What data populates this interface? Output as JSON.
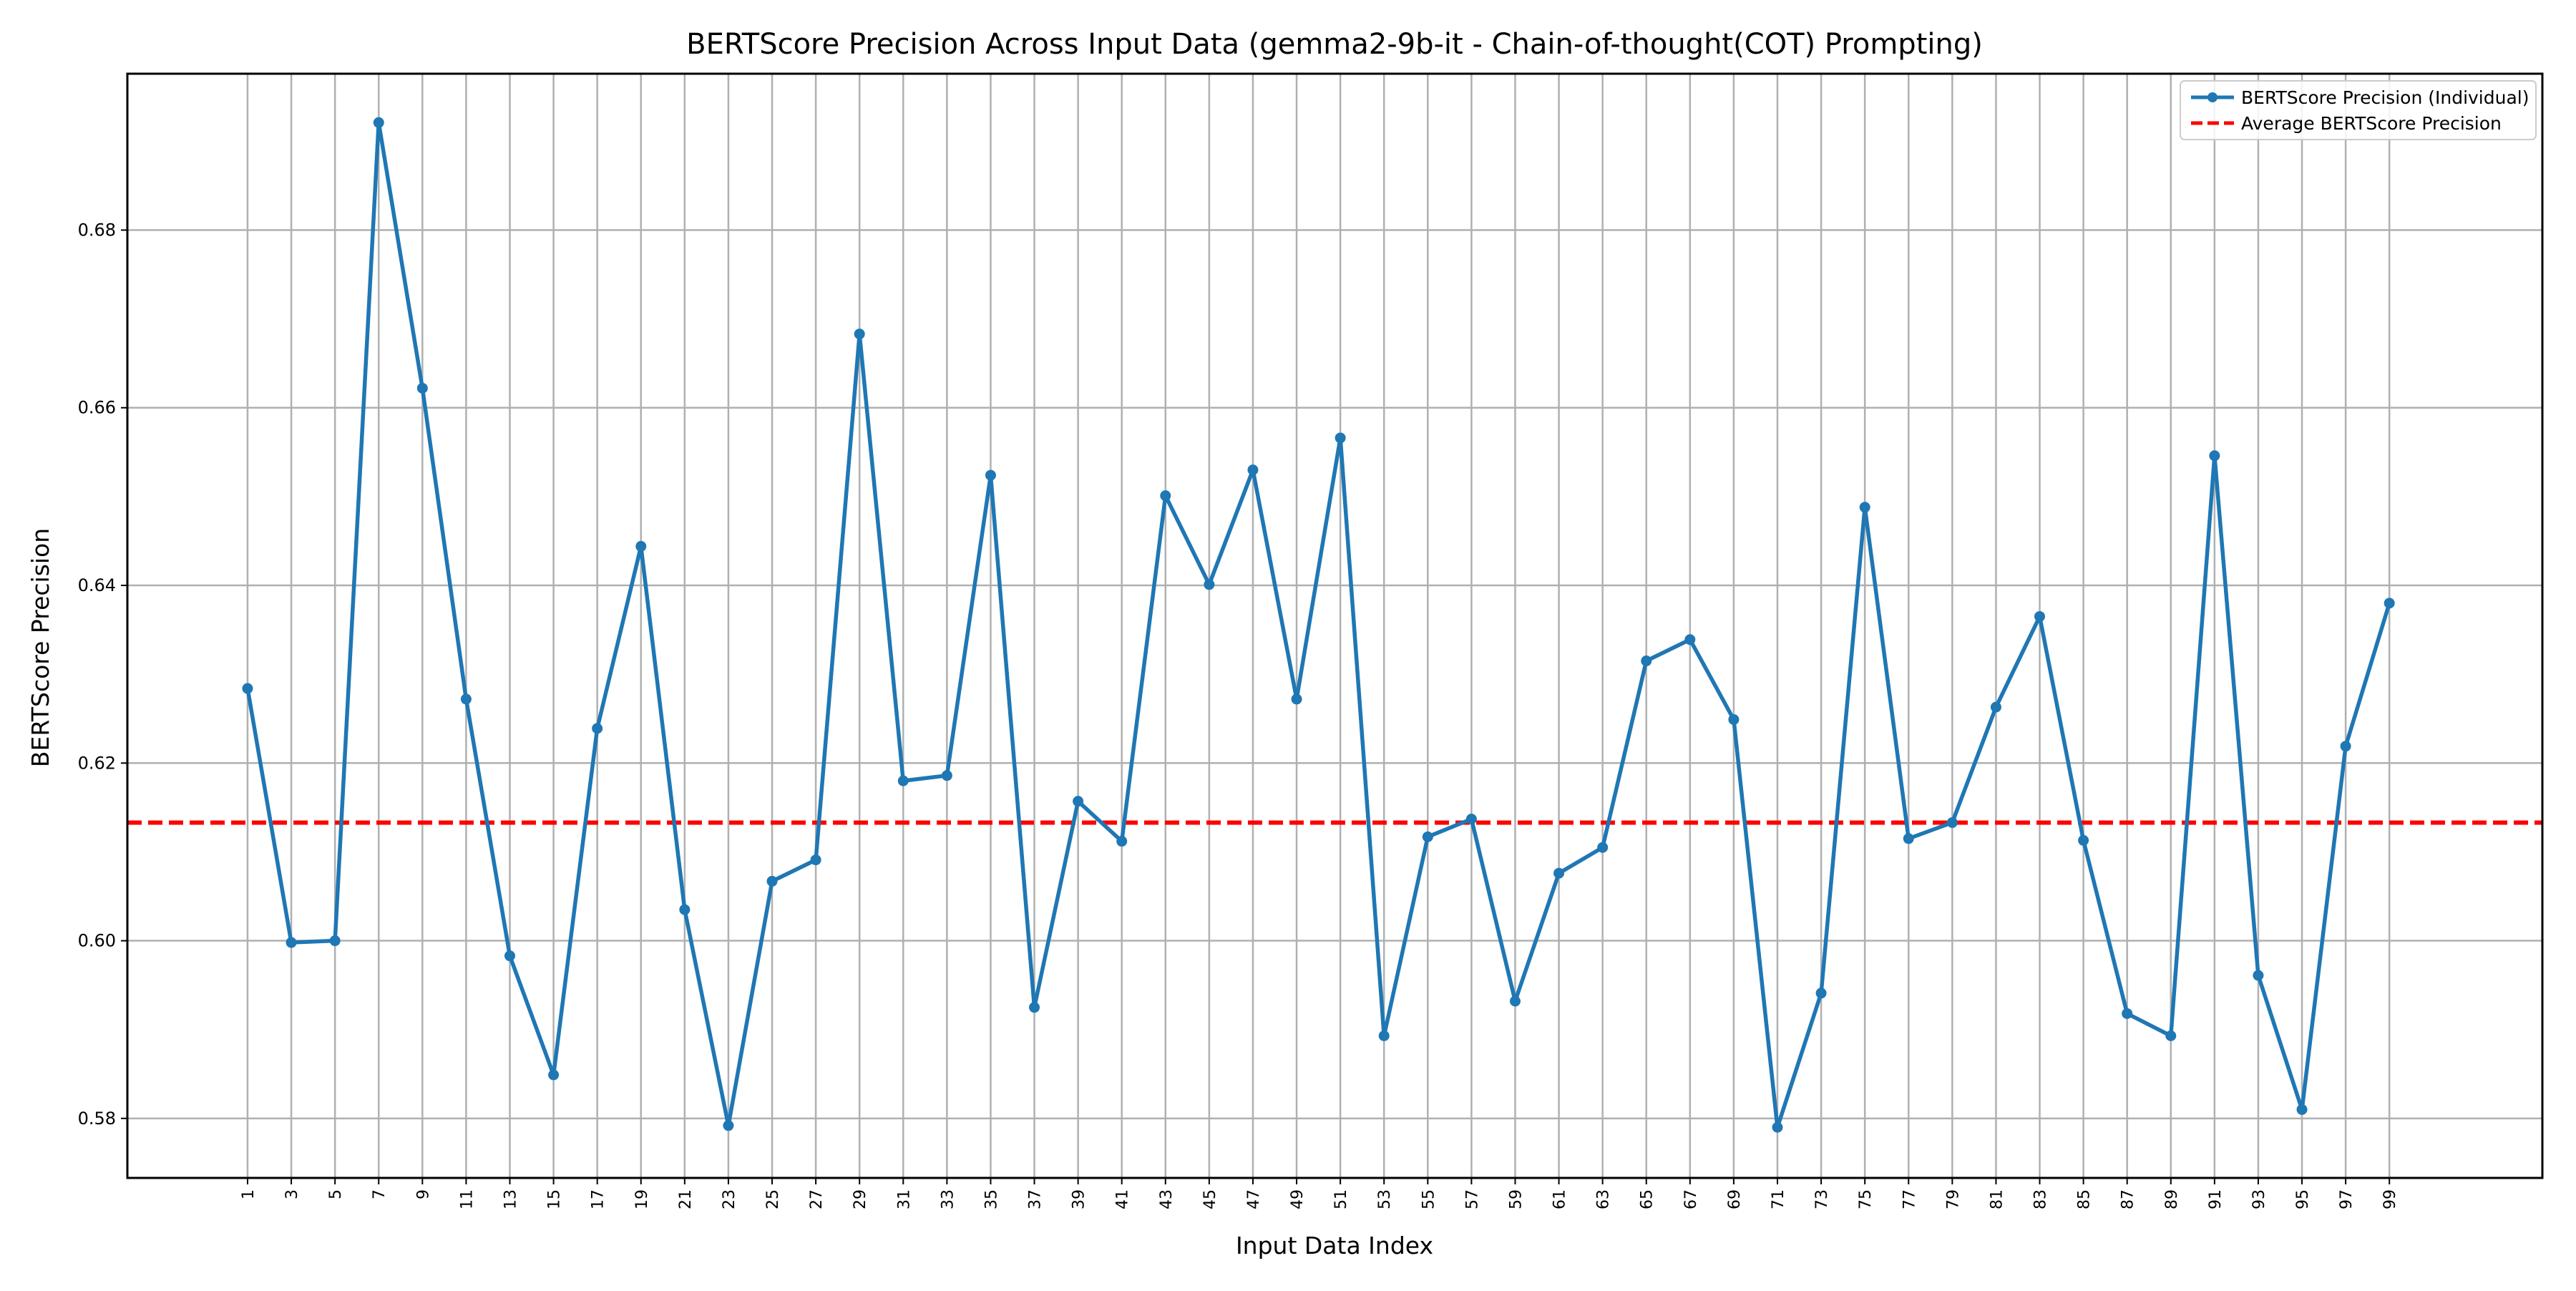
{
  "chart_data": {
    "type": "line",
    "title": "BERTScore Precision Across Input Data (gemma2-9b-it - Chain-of-thought(COT) Prompting)",
    "xlabel": "Input Data Index",
    "ylabel": "BERTScore Precision",
    "x": [
      1,
      3,
      5,
      7,
      9,
      11,
      13,
      15,
      17,
      19,
      21,
      23,
      25,
      27,
      29,
      31,
      33,
      35,
      37,
      39,
      41,
      43,
      45,
      47,
      49,
      51,
      53,
      55,
      57,
      59,
      61,
      63,
      65,
      67,
      69,
      71,
      73,
      75,
      77,
      79,
      81,
      83,
      85,
      87,
      89,
      91,
      93,
      95,
      97,
      99
    ],
    "xlim": [
      -4.5,
      106
    ],
    "ylim": [
      0.5733,
      0.6976
    ],
    "yticks": [
      "0.58",
      "0.60",
      "0.62",
      "0.64",
      "0.66",
      "0.68"
    ],
    "yticks_values": [
      0.58,
      0.6,
      0.62,
      0.64,
      0.66,
      0.68
    ],
    "grid": true,
    "legend_position": "top-right",
    "series": [
      {
        "name": "BERTScore Precision (Individual)",
        "color": "#1f77b4",
        "style": "solid-with-markers",
        "values": [
          0.6284,
          0.5998,
          0.6,
          0.6921,
          0.6622,
          0.6272,
          0.5983,
          0.5849,
          0.6239,
          0.6444,
          0.6035,
          0.5792,
          0.6067,
          0.6091,
          0.6683,
          0.618,
          0.6186,
          0.6524,
          0.5925,
          0.6157,
          0.6112,
          0.6501,
          0.6401,
          0.653,
          0.6272,
          0.6566,
          0.5893,
          0.6117,
          0.6137,
          0.5932,
          0.6076,
          0.6105,
          0.6315,
          0.6339,
          0.6249,
          0.579,
          0.5941,
          0.6488,
          0.6115,
          0.6133,
          0.6263,
          0.6365,
          0.6113,
          0.5918,
          0.5893,
          0.6546,
          0.5961,
          0.581,
          0.6219,
          0.638
        ]
      },
      {
        "name": "Average BERTScore Precision",
        "color": "#ff0000",
        "style": "dashed",
        "value": 0.6133
      }
    ]
  }
}
